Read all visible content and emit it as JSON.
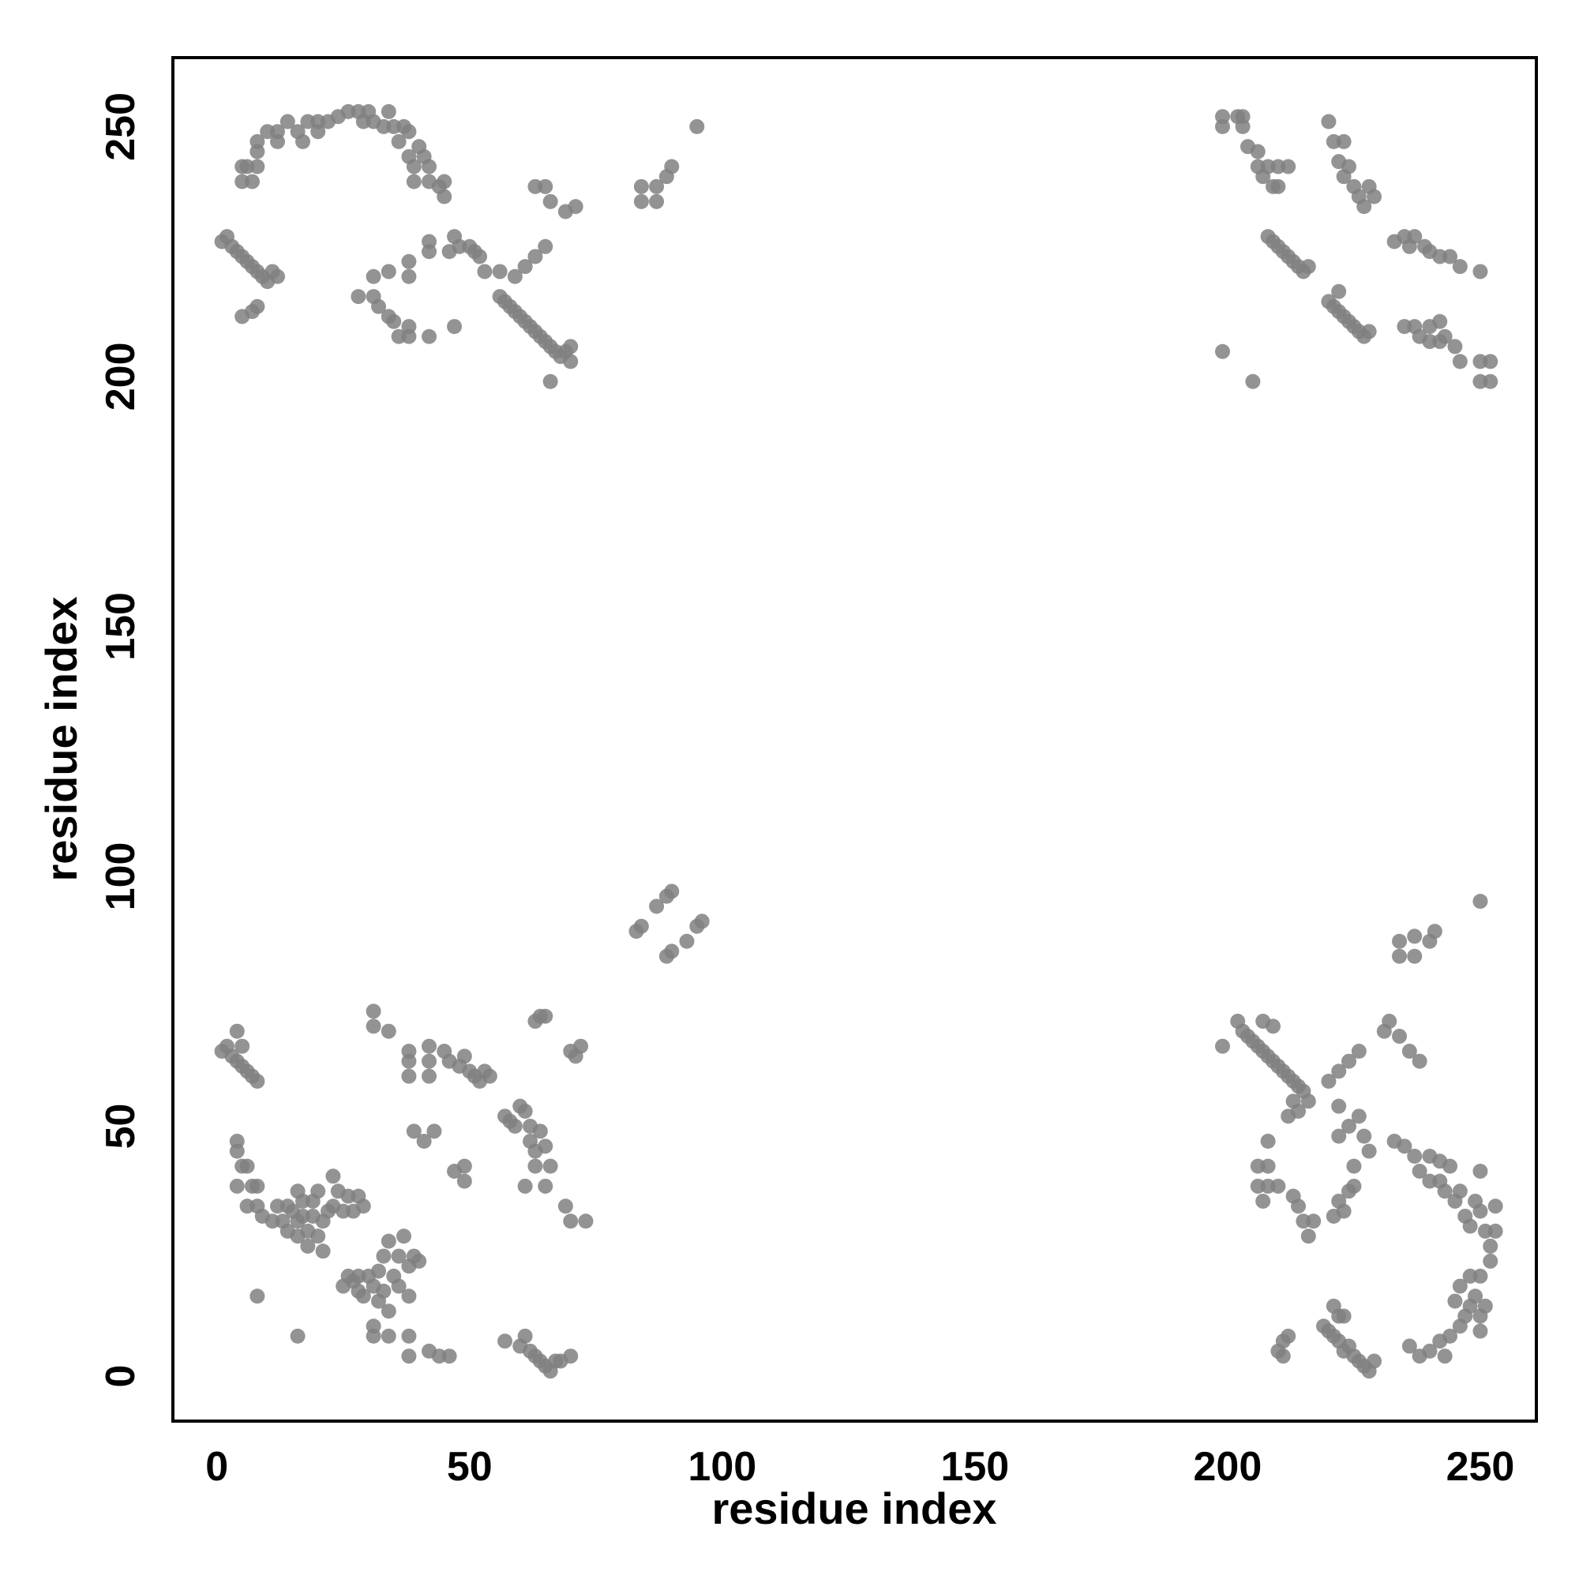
{
  "chart_data": {
    "type": "scatter",
    "x_label": "residue index",
    "y_label": "residue index",
    "xlim": [
      -8.7,
      261.1
    ],
    "ylim": [
      -9.0,
      263.8
    ],
    "xticks": [
      0,
      50,
      100,
      150,
      200,
      250
    ],
    "yticks": [
      0,
      50,
      100,
      150,
      200,
      250
    ],
    "grid": false,
    "color": "#808080",
    "x": [
      5,
      5,
      7,
      6,
      8,
      8,
      8,
      10,
      12,
      12,
      14,
      16,
      17,
      18,
      20,
      22,
      20,
      24,
      26,
      28,
      29,
      30,
      31,
      33,
      34,
      35,
      36,
      37,
      38,
      38,
      39,
      39,
      40,
      41,
      42,
      42,
      44,
      45,
      45,
      1,
      2,
      3,
      4,
      5,
      6,
      7,
      8,
      9,
      10,
      11,
      12,
      5,
      7,
      8,
      28,
      31,
      32,
      34,
      35,
      36,
      38,
      38,
      42,
      47,
      31,
      34,
      38,
      38,
      42,
      42,
      46,
      48,
      47,
      50,
      51,
      52,
      53,
      56,
      56,
      57,
      58,
      59,
      60,
      61,
      62,
      63,
      64,
      65,
      66,
      67,
      68,
      69,
      70,
      70,
      66,
      59,
      61,
      63,
      65,
      63,
      65,
      66,
      69,
      71,
      84,
      84,
      87,
      87,
      89,
      90,
      95,
      199,
      199,
      202,
      203,
      203,
      204,
      206,
      206,
      207,
      208,
      209,
      210,
      212,
      210,
      208,
      209,
      210,
      211,
      212,
      213,
      214,
      215,
      216,
      220,
      221,
      222,
      223,
      224,
      225,
      226,
      227,
      228,
      222,
      220,
      221,
      223,
      222,
      224,
      223,
      225,
      226,
      227,
      228,
      229,
      233,
      235,
      236,
      237,
      239,
      240,
      242,
      244,
      246,
      250,
      235,
      237,
      238,
      240,
      242,
      243,
      245,
      246,
      250,
      252,
      250,
      252,
      199,
      205,
      240,
      242,
      1,
      2,
      3,
      4,
      5,
      6,
      7,
      8,
      4,
      5,
      4,
      4,
      5,
      6,
      4,
      7,
      8,
      6,
      8,
      9,
      11,
      8,
      16,
      12,
      13,
      14,
      14,
      15,
      16,
      16,
      16,
      17,
      17,
      18,
      18,
      19,
      19,
      20,
      20,
      21,
      21,
      22,
      23,
      23,
      24,
      25,
      26,
      27,
      28,
      29,
      25,
      26,
      27,
      28,
      28,
      29,
      30,
      31,
      32,
      32,
      33,
      33,
      34,
      34,
      35,
      36,
      36,
      37,
      38,
      38,
      39,
      40,
      31,
      31,
      34,
      38,
      38,
      42,
      44,
      46,
      31,
      31,
      34,
      38,
      38,
      38,
      42,
      42,
      42,
      45,
      46,
      48,
      49,
      50,
      51,
      52,
      53,
      54,
      39,
      41,
      43,
      47,
      49,
      49,
      57,
      58,
      59,
      60,
      61,
      62,
      62,
      63,
      63,
      64,
      65,
      66,
      61,
      65,
      69,
      70,
      73,
      60,
      61,
      62,
      63,
      64,
      65,
      66,
      67,
      68,
      70,
      57,
      63,
      64,
      65,
      70,
      71,
      72,
      83,
      84,
      87,
      89,
      90,
      89,
      90,
      93,
      95,
      96,
      199,
      202,
      203,
      204,
      205,
      206,
      207,
      208,
      209,
      210,
      211,
      212,
      213,
      214,
      215,
      207,
      209,
      212,
      213,
      214,
      216,
      220,
      222,
      224,
      226,
      206,
      206,
      208,
      208,
      210,
      207,
      208,
      213,
      214,
      215,
      216,
      217,
      221,
      222,
      223,
      224,
      225,
      225,
      222,
      224,
      226,
      227,
      228,
      222,
      210,
      211,
      211,
      212,
      219,
      220,
      221,
      222,
      222,
      223,
      224,
      225,
      226,
      227,
      228,
      229,
      223,
      221,
      233,
      235,
      237,
      238,
      240,
      240,
      242,
      242,
      243,
      244,
      245,
      246,
      247,
      248,
      249,
      250,
      251,
      252,
      252,
      253,
      253,
      250,
      250,
      249,
      248,
      247,
      246,
      244,
      242,
      240,
      238,
      236,
      243,
      245,
      246,
      248,
      250,
      250,
      251,
      232,
      234,
      234,
      234,
      237,
      237,
      240,
      241,
      250,
      236,
      238,
      231
    ],
    "y": [
      242,
      239,
      239,
      242,
      242,
      245,
      247,
      249,
      249,
      247,
      251,
      249,
      247,
      251,
      251,
      251,
      249,
      252,
      253,
      253,
      251,
      253,
      251,
      250,
      253,
      250,
      247,
      250,
      249,
      244,
      242,
      239,
      246,
      244,
      242,
      239,
      238,
      239,
      236,
      227,
      228,
      226,
      225,
      224,
      223,
      222,
      221,
      220,
      219,
      221,
      220,
      212,
      213,
      214,
      216,
      216,
      214,
      212,
      211,
      208,
      210,
      208,
      208,
      210,
      220,
      221,
      220,
      223,
      225,
      227,
      225,
      226,
      228,
      226,
      225,
      224,
      221,
      221,
      216,
      215,
      214,
      213,
      212,
      211,
      210,
      209,
      208,
      207,
      206,
      205,
      204,
      205,
      206,
      203,
      199,
      220,
      222,
      224,
      226,
      238,
      238,
      235,
      233,
      234,
      235,
      238,
      238,
      235,
      240,
      242,
      250,
      252,
      250,
      252,
      252,
      250,
      246,
      245,
      242,
      240,
      242,
      238,
      242,
      242,
      238,
      228,
      227,
      226,
      225,
      224,
      223,
      222,
      221,
      222,
      215,
      214,
      213,
      212,
      211,
      210,
      209,
      208,
      209,
      217,
      251,
      247,
      247,
      243,
      242,
      240,
      238,
      236,
      234,
      238,
      236,
      227,
      228,
      226,
      228,
      226,
      225,
      224,
      224,
      222,
      221,
      210,
      210,
      208,
      210,
      211,
      208,
      206,
      203,
      199,
      199,
      203,
      203,
      205,
      199,
      207,
      207,
      65,
      66,
      64,
      63,
      62,
      61,
      60,
      59,
      69,
      66,
      47,
      45,
      42,
      42,
      38,
      38,
      38,
      34,
      34,
      32,
      31,
      16,
      8,
      34,
      31,
      29,
      34,
      33,
      31,
      28,
      37,
      35,
      32,
      29,
      26,
      32,
      35,
      28,
      37,
      25,
      31,
      33,
      34,
      40,
      37,
      33,
      36,
      33,
      36,
      34,
      18,
      20,
      19,
      17,
      20,
      16,
      20,
      18,
      15,
      21,
      17,
      24,
      27,
      13,
      20,
      24,
      18,
      28,
      16,
      22,
      24,
      23,
      10,
      8,
      8,
      8,
      4,
      5,
      4,
      4,
      73,
      70,
      69,
      65,
      63,
      60,
      66,
      63,
      60,
      65,
      63,
      62,
      64,
      61,
      60,
      59,
      61,
      60,
      49,
      47,
      49,
      41,
      42,
      39,
      52,
      51,
      50,
      54,
      53,
      50,
      47,
      45,
      42,
      49,
      46,
      42,
      38,
      38,
      34,
      31,
      31,
      6,
      8,
      5,
      4,
      3,
      2,
      1,
      3,
      3,
      4,
      7,
      71,
      72,
      72,
      65,
      64,
      66,
      89,
      90,
      94,
      96,
      97,
      84,
      85,
      87,
      90,
      91,
      66,
      71,
      69,
      68,
      67,
      66,
      65,
      64,
      63,
      62,
      61,
      60,
      59,
      58,
      57,
      71,
      70,
      52,
      55,
      53,
      55,
      59,
      61,
      63,
      65,
      38,
      42,
      42,
      38,
      38,
      35,
      47,
      36,
      34,
      31,
      28,
      31,
      32,
      35,
      33,
      37,
      38,
      42,
      48,
      50,
      52,
      48,
      45,
      54,
      5,
      4,
      7,
      8,
      10,
      9,
      8,
      12,
      7,
      5,
      6,
      4,
      3,
      2,
      1,
      3,
      12,
      14,
      47,
      46,
      44,
      41,
      39,
      44,
      43,
      39,
      37,
      42,
      35,
      37,
      32,
      30,
      35,
      33,
      29,
      26,
      23,
      29,
      34,
      41,
      20,
      16,
      14,
      12,
      10,
      8,
      7,
      5,
      4,
      6,
      4,
      15,
      18,
      20,
      12,
      9,
      14,
      71,
      68,
      84,
      87,
      84,
      88,
      87,
      89,
      95,
      65,
      63,
      69
    ]
  }
}
